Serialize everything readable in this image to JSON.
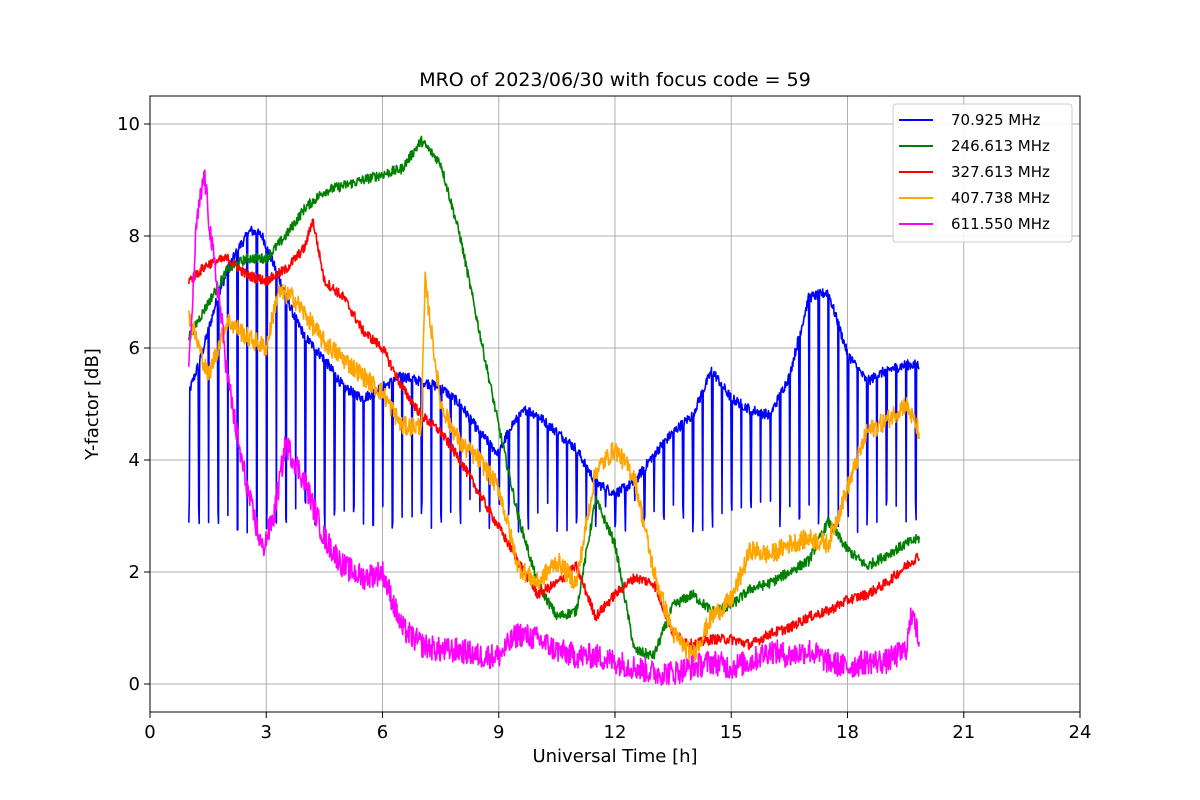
{
  "chart_data": {
    "type": "line",
    "title": "MRO of 2023/06/30 with focus code = 59",
    "xlabel": "Universal Time [h]",
    "ylabel": "Y-factor [dB]",
    "xlim": [
      0,
      24
    ],
    "ylim": [
      -0.5,
      10.5
    ],
    "xticks": [
      0,
      3,
      6,
      9,
      12,
      15,
      18,
      21,
      24
    ],
    "yticks": [
      0,
      2,
      4,
      6,
      8,
      10
    ],
    "grid": true,
    "legend_position": "top-right",
    "series": [
      {
        "name": "70.925 MHz",
        "legend_label": " 70.925 MHz",
        "color": "#0000ff",
        "dips_to": 3.0,
        "dip_period_h": 0.25,
        "x": [
          1.0,
          1.3,
          1.7,
          2.0,
          2.3,
          2.6,
          2.9,
          3.3,
          3.7,
          4.0,
          4.5,
          5.0,
          5.5,
          6.0,
          6.5,
          7.0,
          7.5,
          8.0,
          8.5,
          9.0,
          9.3,
          9.7,
          10.0,
          10.5,
          11.0,
          11.5,
          12.0,
          12.5,
          13.0,
          13.5,
          14.0,
          14.5,
          15.0,
          15.5,
          16.0,
          16.5,
          17.0,
          17.5,
          18.0,
          18.5,
          19.0,
          19.5,
          19.85
        ],
        "y": [
          5.2,
          5.8,
          6.8,
          7.4,
          7.8,
          8.1,
          8.0,
          7.3,
          6.6,
          6.2,
          5.8,
          5.3,
          5.1,
          5.3,
          5.5,
          5.4,
          5.3,
          5.0,
          4.5,
          4.1,
          4.6,
          4.9,
          4.8,
          4.5,
          4.2,
          3.6,
          3.4,
          3.6,
          4.1,
          4.5,
          4.8,
          5.6,
          5.1,
          4.9,
          4.8,
          5.5,
          6.9,
          7.0,
          5.9,
          5.4,
          5.6,
          5.7,
          5.7
        ]
      },
      {
        "name": "246.613 MHz",
        "color": "#008000",
        "x": [
          1.0,
          1.5,
          2.0,
          2.5,
          3.0,
          3.5,
          4.0,
          4.5,
          5.0,
          5.5,
          6.0,
          6.5,
          7.0,
          7.5,
          8.0,
          8.5,
          9.0,
          9.5,
          10.0,
          10.5,
          11.0,
          11.5,
          12.0,
          12.5,
          13.0,
          13.5,
          14.0,
          14.5,
          15.0,
          15.5,
          16.0,
          16.5,
          17.0,
          17.5,
          18.0,
          18.5,
          19.0,
          19.5,
          19.85
        ],
        "y": [
          6.2,
          6.8,
          7.4,
          7.6,
          7.6,
          8.0,
          8.5,
          8.8,
          8.9,
          9.0,
          9.1,
          9.2,
          9.7,
          9.3,
          8.0,
          6.3,
          4.6,
          3.0,
          1.8,
          1.2,
          1.3,
          3.3,
          2.5,
          0.6,
          0.5,
          1.4,
          1.6,
          1.3,
          1.4,
          1.7,
          1.8,
          2.0,
          2.2,
          2.9,
          2.4,
          2.1,
          2.3,
          2.5,
          2.6
        ]
      },
      {
        "name": "327.613 MHz",
        "color": "#ff0000",
        "x": [
          1.0,
          1.5,
          2.0,
          2.5,
          3.0,
          3.5,
          4.0,
          4.2,
          4.5,
          5.0,
          5.5,
          6.0,
          6.5,
          7.0,
          7.5,
          8.0,
          8.5,
          9.0,
          9.5,
          10.0,
          10.5,
          11.0,
          11.5,
          12.0,
          12.5,
          13.0,
          13.5,
          14.0,
          14.5,
          15.0,
          15.5,
          16.0,
          16.5,
          17.0,
          17.5,
          18.0,
          18.5,
          19.0,
          19.5,
          19.85
        ],
        "y": [
          7.2,
          7.5,
          7.6,
          7.3,
          7.2,
          7.4,
          7.8,
          8.3,
          7.2,
          6.9,
          6.3,
          6.0,
          5.3,
          4.8,
          4.5,
          4.0,
          3.4,
          2.8,
          2.2,
          1.6,
          1.8,
          2.1,
          1.2,
          1.6,
          1.9,
          1.8,
          0.9,
          0.7,
          0.8,
          0.8,
          0.7,
          0.9,
          1.0,
          1.2,
          1.3,
          1.5,
          1.6,
          1.8,
          2.1,
          2.3
        ]
      },
      {
        "name": "407.738 MHz",
        "color": "#ffa500",
        "x": [
          1.0,
          1.5,
          2.0,
          2.5,
          3.0,
          3.3,
          3.7,
          4.0,
          4.5,
          5.0,
          5.5,
          6.0,
          6.5,
          7.0,
          7.1,
          7.5,
          8.0,
          8.5,
          9.0,
          9.5,
          10.0,
          10.5,
          11.0,
          11.5,
          12.0,
          12.5,
          13.0,
          13.5,
          14.0,
          14.5,
          15.0,
          15.5,
          16.0,
          16.5,
          17.0,
          17.5,
          18.0,
          18.5,
          19.0,
          19.5,
          19.85
        ],
        "y": [
          6.6,
          5.5,
          6.5,
          6.2,
          6.0,
          7.0,
          6.9,
          6.6,
          6.1,
          5.8,
          5.5,
          5.2,
          4.6,
          4.6,
          7.2,
          5.0,
          4.3,
          4.0,
          3.5,
          2.1,
          1.8,
          2.2,
          1.8,
          3.8,
          4.2,
          3.7,
          2.0,
          0.9,
          0.5,
          1.2,
          1.5,
          2.4,
          2.3,
          2.5,
          2.6,
          2.5,
          3.5,
          4.5,
          4.7,
          5.0,
          4.5
        ]
      },
      {
        "name": "611.550 MHz",
        "color": "#ff00ff",
        "x": [
          1.0,
          1.2,
          1.4,
          1.6,
          1.8,
          2.0,
          2.3,
          2.6,
          2.9,
          3.2,
          3.5,
          4.0,
          4.5,
          5.0,
          5.5,
          6.0,
          6.5,
          7.0,
          7.5,
          8.0,
          8.5,
          9.0,
          9.5,
          10.0,
          10.5,
          11.0,
          11.5,
          12.0,
          12.5,
          13.0,
          13.5,
          14.0,
          14.5,
          15.0,
          15.5,
          16.0,
          16.5,
          17.0,
          17.5,
          18.0,
          18.5,
          19.0,
          19.5,
          19.7,
          19.85
        ],
        "y": [
          5.5,
          8.2,
          9.1,
          7.8,
          6.8,
          5.5,
          4.2,
          3.2,
          2.4,
          3.0,
          4.3,
          3.6,
          2.6,
          2.1,
          1.9,
          2.0,
          1.0,
          0.7,
          0.6,
          0.6,
          0.5,
          0.5,
          0.9,
          0.8,
          0.6,
          0.5,
          0.5,
          0.4,
          0.3,
          0.2,
          0.2,
          0.3,
          0.4,
          0.3,
          0.4,
          0.6,
          0.5,
          0.6,
          0.4,
          0.3,
          0.4,
          0.4,
          0.6,
          1.4,
          0.6
        ]
      }
    ]
  }
}
